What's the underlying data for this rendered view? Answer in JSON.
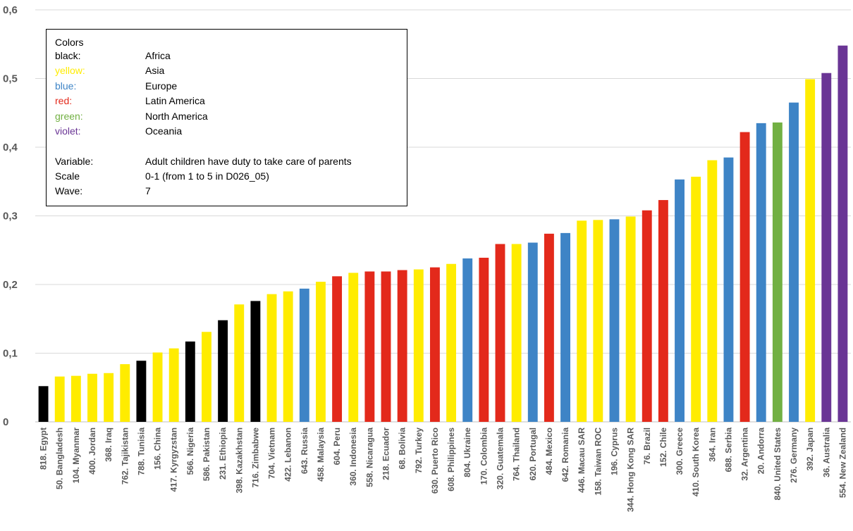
{
  "legend": {
    "title": "Colors",
    "colors": [
      {
        "key": "black:",
        "region": "Africa",
        "color": "#000000"
      },
      {
        "key": "yellow:",
        "region": "Asia",
        "color": "#FFEC00"
      },
      {
        "key": "blue:",
        "region": "Europe",
        "color": "#3E84C6"
      },
      {
        "key": "red:",
        "region": "Latin America",
        "color": "#E3291B"
      },
      {
        "key": "green:",
        "region": "North America",
        "color": "#72B043"
      },
      {
        "key": "violet:",
        "region": "Oceania",
        "color": "#6A3595"
      }
    ],
    "info": [
      {
        "key": "Variable:",
        "value": "Adult children have duty to take care of parents"
      },
      {
        "key": "Scale",
        "value": "0-1 (from 1 to 5 in D026_05)"
      },
      {
        "key": "Wave:",
        "value": "7"
      }
    ]
  },
  "chart_data": {
    "type": "bar",
    "ylim": [
      0,
      0.6
    ],
    "yticks": [
      "0",
      "0,1",
      "0,2",
      "0,3",
      "0,4",
      "0,5",
      "0,6"
    ],
    "grid": true,
    "region_colors": {
      "Africa": "#000000",
      "Asia": "#FFEC00",
      "Europe": "#3E84C6",
      "Latin America": "#E3291B",
      "North America": "#72B043",
      "Oceania": "#6A3595"
    },
    "bars": [
      {
        "label": "818. Egypt",
        "value": 0.052,
        "region": "Africa"
      },
      {
        "label": "50. Bangladesh",
        "value": 0.066,
        "region": "Asia"
      },
      {
        "label": "104. Myanmar",
        "value": 0.067,
        "region": "Asia"
      },
      {
        "label": "400. Jordan",
        "value": 0.07,
        "region": "Asia"
      },
      {
        "label": "368. Iraq",
        "value": 0.071,
        "region": "Asia"
      },
      {
        "label": "762. Tajikistan",
        "value": 0.084,
        "region": "Asia"
      },
      {
        "label": "788. Tunisia",
        "value": 0.089,
        "region": "Africa"
      },
      {
        "label": "156. China",
        "value": 0.101,
        "region": "Asia"
      },
      {
        "label": "417. Kyrgyzstan",
        "value": 0.107,
        "region": "Asia"
      },
      {
        "label": "566. Nigeria",
        "value": 0.117,
        "region": "Africa"
      },
      {
        "label": "586. Pakistan",
        "value": 0.131,
        "region": "Asia"
      },
      {
        "label": "231. Ethiopia",
        "value": 0.148,
        "region": "Africa"
      },
      {
        "label": "398. Kazakhstan",
        "value": 0.171,
        "region": "Asia"
      },
      {
        "label": "716. Zimbabwe",
        "value": 0.176,
        "region": "Africa"
      },
      {
        "label": "704. Vietnam",
        "value": 0.186,
        "region": "Asia"
      },
      {
        "label": "422. Lebanon",
        "value": 0.19,
        "region": "Asia"
      },
      {
        "label": "643. Russia",
        "value": 0.194,
        "region": "Europe"
      },
      {
        "label": "458. Malaysia",
        "value": 0.204,
        "region": "Asia"
      },
      {
        "label": "604. Peru",
        "value": 0.212,
        "region": "Latin America"
      },
      {
        "label": "360. Indonesia",
        "value": 0.217,
        "region": "Asia"
      },
      {
        "label": "558. Nicaragua",
        "value": 0.219,
        "region": "Latin America"
      },
      {
        "label": "218. Ecuador",
        "value": 0.219,
        "region": "Latin America"
      },
      {
        "label": "68. Bolivia",
        "value": 0.221,
        "region": "Latin America"
      },
      {
        "label": "792. Turkey",
        "value": 0.222,
        "region": "Asia"
      },
      {
        "label": "630. Puerto Rico",
        "value": 0.225,
        "region": "Latin America"
      },
      {
        "label": "608. Philippines",
        "value": 0.23,
        "region": "Asia"
      },
      {
        "label": "804. Ukraine",
        "value": 0.238,
        "region": "Europe"
      },
      {
        "label": "170. Colombia",
        "value": 0.239,
        "region": "Latin America"
      },
      {
        "label": "320. Guatemala",
        "value": 0.259,
        "region": "Latin America"
      },
      {
        "label": "764. Thailand",
        "value": 0.259,
        "region": "Asia"
      },
      {
        "label": "620. Portugal",
        "value": 0.261,
        "region": "Europe"
      },
      {
        "label": "484. Mexico",
        "value": 0.274,
        "region": "Latin America"
      },
      {
        "label": "642. Romania",
        "value": 0.275,
        "region": "Europe"
      },
      {
        "label": "446. Macau SAR",
        "value": 0.293,
        "region": "Asia"
      },
      {
        "label": "158. Taiwan ROC",
        "value": 0.294,
        "region": "Asia"
      },
      {
        "label": "196. Cyprus",
        "value": 0.295,
        "region": "Europe"
      },
      {
        "label": "344. Hong Kong SAR",
        "value": 0.299,
        "region": "Asia"
      },
      {
        "label": "76. Brazil",
        "value": 0.308,
        "region": "Latin America"
      },
      {
        "label": "152. Chile",
        "value": 0.323,
        "region": "Latin America"
      },
      {
        "label": "300. Greece",
        "value": 0.353,
        "region": "Europe"
      },
      {
        "label": "410. South Korea",
        "value": 0.357,
        "region": "Asia"
      },
      {
        "label": "364. Iran",
        "value": 0.381,
        "region": "Asia"
      },
      {
        "label": "688. Serbia",
        "value": 0.385,
        "region": "Europe"
      },
      {
        "label": "32. Argentina",
        "value": 0.422,
        "region": "Latin America"
      },
      {
        "label": "20. Andorra",
        "value": 0.435,
        "region": "Europe"
      },
      {
        "label": "840. United States",
        "value": 0.436,
        "region": "North America"
      },
      {
        "label": "276. Germany",
        "value": 0.465,
        "region": "Europe"
      },
      {
        "label": "392. Japan",
        "value": 0.499,
        "region": "Asia"
      },
      {
        "label": "36. Australia",
        "value": 0.508,
        "region": "Oceania"
      },
      {
        "label": "554. New Zealand",
        "value": 0.548,
        "region": "Oceania"
      }
    ]
  }
}
